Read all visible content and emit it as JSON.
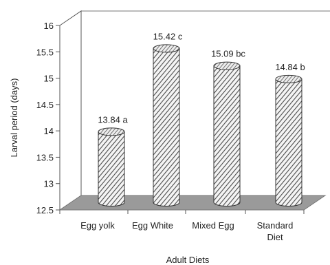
{
  "chart_data": {
    "type": "bar",
    "style": "3d-cylinder",
    "xlabel": "Adult Diets",
    "ylabel": "Larval period (days)",
    "ylim": [
      12.5,
      16
    ],
    "yticks": [
      "12.5",
      "13",
      "13.5",
      "14",
      "14.5",
      "15",
      "15.5",
      "16"
    ],
    "categories": [
      {
        "lines": [
          "Egg yolk"
        ]
      },
      {
        "lines": [
          "Egg White"
        ]
      },
      {
        "lines": [
          "Mixed Egg"
        ]
      },
      {
        "lines": [
          "Standard",
          "Diet"
        ]
      }
    ],
    "values": [
      13.84,
      15.42,
      15.09,
      14.84
    ],
    "data_labels": [
      "13.84 a",
      "15.42 c",
      "15.09 bc",
      "14.84 b"
    ],
    "grid": false,
    "colors": {
      "bar": "hatched-gray",
      "floor": "#9a9a9a"
    }
  }
}
